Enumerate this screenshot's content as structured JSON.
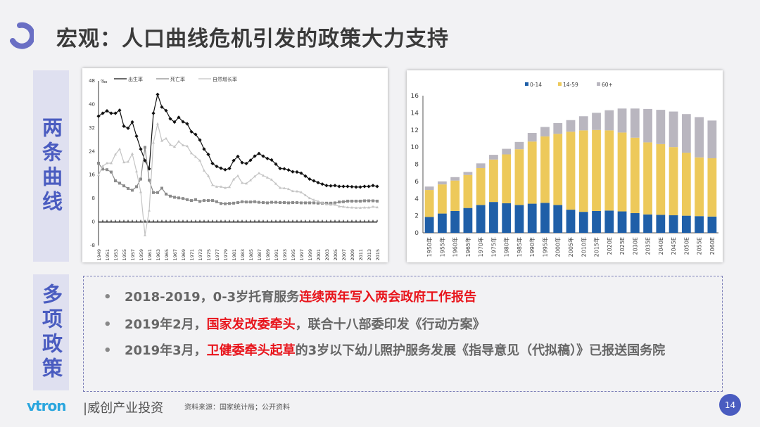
{
  "title": "宏观：人口曲线危机引发的政策大力支持",
  "side_labels": [
    "两条曲线",
    "多项政策"
  ],
  "bullets": [
    {
      "prefix": "2018-2019，0-3岁托育服务",
      "highlight": "连续两年写入两会政府工作报告",
      "suffix": ""
    },
    {
      "prefix": "2019年2月，",
      "highlight": "国家发改委牵头",
      "suffix": "，联合十八部委印发《行动方案》"
    },
    {
      "prefix": "2019年3月，",
      "highlight": "卫健委牵头起草",
      "suffix": "的3岁以下幼儿照护服务发展《指导意见（代拟稿）》已报送国务院"
    }
  ],
  "footer": {
    "logo": "vtron",
    "company": "|威创产业投资",
    "source": "资料来源：国家统计局；公开资料",
    "page": "14"
  },
  "colors": {
    "accent": "#4a5cc0",
    "highlight": "#e8141b",
    "bar_0_14": "#1f5fa8",
    "bar_14_59": "#edc95a",
    "bar_60": "#b9b6bf"
  },
  "chart_data": [
    {
      "type": "line",
      "unit": "‰",
      "ylim": [
        -8,
        48
      ],
      "yticks": [
        -8,
        0,
        8,
        16,
        24,
        32,
        40,
        48
      ],
      "xlim": [
        1949,
        2015
      ],
      "xtick_labels": [
        "1949",
        "1951",
        "1953",
        "1955",
        "1957",
        "1959",
        "1961",
        "1963",
        "1965",
        "1967",
        "1969",
        "1971",
        "1973",
        "1975",
        "1977",
        "1979",
        "1981",
        "1983",
        "1985",
        "1987",
        "1989",
        "1991",
        "1993",
        "1995",
        "1997",
        "1999",
        "2001",
        "2003",
        "2005",
        "2007",
        "2009",
        "2011",
        "2013",
        "2015"
      ],
      "legend_position": "top",
      "series": [
        {
          "name": "出生率",
          "color": "#111111",
          "marker": "diamond",
          "values": [
            36,
            37,
            37.8,
            37,
            37,
            38,
            32.6,
            31.9,
            34,
            29.2,
            24.8,
            20.9,
            18.1,
            37,
            43.4,
            39.1,
            37.9,
            35.1,
            34,
            35.6,
            34.1,
            33.4,
            30.7,
            29.8,
            27.9,
            24.8,
            23,
            19.9,
            18.9,
            18.3,
            17.8,
            18.2,
            20.9,
            22.3,
            20.2,
            19.9,
            21,
            22.4,
            23.3,
            22.4,
            21.6,
            21.1,
            19.7,
            18.2,
            18.1,
            17.7,
            17.1,
            17,
            16.6,
            15.6,
            14.6,
            14,
            13.4,
            12.9,
            12.4,
            12.3,
            12.4,
            12.1,
            12.1,
            12.1,
            12,
            11.9,
            11.9,
            12.1,
            12.1,
            12.4,
            12.1
          ]
        },
        {
          "name": "死亡率",
          "color": "#8c8c8c",
          "marker": "square",
          "values": [
            20,
            18,
            17.8,
            17,
            14,
            13.2,
            12.3,
            11.4,
            10.8,
            12,
            14.6,
            25.4,
            14.2,
            10,
            10,
            11.5,
            9.5,
            8.8,
            8.4,
            8.2,
            8,
            7.6,
            7.3,
            7.6,
            7,
            7.3,
            7.3,
            7.3,
            6.9,
            6.3,
            6.2,
            6.3,
            6.4,
            6.6,
            6.9,
            6.8,
            6.8,
            6.9,
            6.7,
            6.6,
            6.5,
            6.7,
            6.7,
            6.6,
            6.6,
            6.5,
            6.6,
            6.6,
            6.5,
            6.5,
            6.5,
            6.5,
            6.4,
            6.4,
            6.4,
            6.4,
            6.5,
            6.8,
            6.9,
            7.1,
            7.1,
            7.1,
            7.1,
            7.2,
            7.2,
            7.2,
            7.1
          ]
        },
        {
          "name": "自然增长率",
          "color": "#c4c4c4",
          "marker": "triangle",
          "values": [
            16,
            19,
            20,
            20,
            23,
            24.8,
            20.3,
            20.5,
            23.2,
            17.2,
            10.2,
            -4.5,
            3.9,
            27,
            33.4,
            27.6,
            28.4,
            26.3,
            25.6,
            27.4,
            26.1,
            25.8,
            23.4,
            22.2,
            20.9,
            17.5,
            15.7,
            12.6,
            12,
            12,
            11.6,
            11.9,
            14.5,
            15.7,
            13.3,
            13.1,
            14.2,
            15.5,
            16.6,
            15.8,
            15.1,
            14.4,
            13,
            11.6,
            11.5,
            11.2,
            10.5,
            10.4,
            10.1,
            9.1,
            8.1,
            7.5,
            7,
            6.5,
            6,
            5.9,
            5.9,
            5.3,
            5.2,
            5,
            4.9,
            4.8,
            4.8,
            4.9,
            4.9,
            5.2,
            5
          ]
        }
      ]
    },
    {
      "type": "bar",
      "stacked": true,
      "ylim": [
        0,
        16
      ],
      "yticks": [
        0,
        2,
        4,
        6,
        8,
        10,
        12,
        14,
        16
      ],
      "legend_position": "top",
      "categories": [
        "1950年",
        "1955年",
        "1960年",
        "1965年",
        "1970年",
        "1975年",
        "1980年",
        "1985年",
        "1990年",
        "1995年",
        "2000年",
        "2005年",
        "2010年",
        "2015年",
        "2020E",
        "2025E",
        "2030E",
        "2035E",
        "2040E",
        "2045E",
        "2050E",
        "2055E",
        "2060E"
      ],
      "series": [
        {
          "name": "0-14",
          "color": "#1f5fa8",
          "values": [
            1.85,
            2.25,
            2.55,
            2.9,
            3.25,
            3.6,
            3.45,
            3.25,
            3.4,
            3.5,
            3.25,
            2.7,
            2.45,
            2.55,
            2.6,
            2.5,
            2.3,
            2.15,
            2.1,
            2.05,
            2.0,
            1.95,
            1.9
          ]
        },
        {
          "name": "14-59",
          "color": "#edc95a",
          "values": [
            3.15,
            3.4,
            3.55,
            3.85,
            4.3,
            4.95,
            5.7,
            6.5,
            7.25,
            7.75,
            8.3,
            9.1,
            9.5,
            9.45,
            9.35,
            9.2,
            8.8,
            8.4,
            8.25,
            7.95,
            7.35,
            6.85,
            6.8
          ]
        },
        {
          "name": "60+",
          "color": "#b9b6bf",
          "values": [
            0.4,
            0.35,
            0.4,
            0.35,
            0.55,
            0.55,
            0.65,
            0.85,
            1.0,
            1.1,
            1.25,
            1.35,
            1.65,
            2.0,
            2.35,
            2.8,
            3.4,
            3.9,
            4.0,
            4.15,
            4.5,
            4.7,
            4.4
          ]
        }
      ]
    }
  ]
}
